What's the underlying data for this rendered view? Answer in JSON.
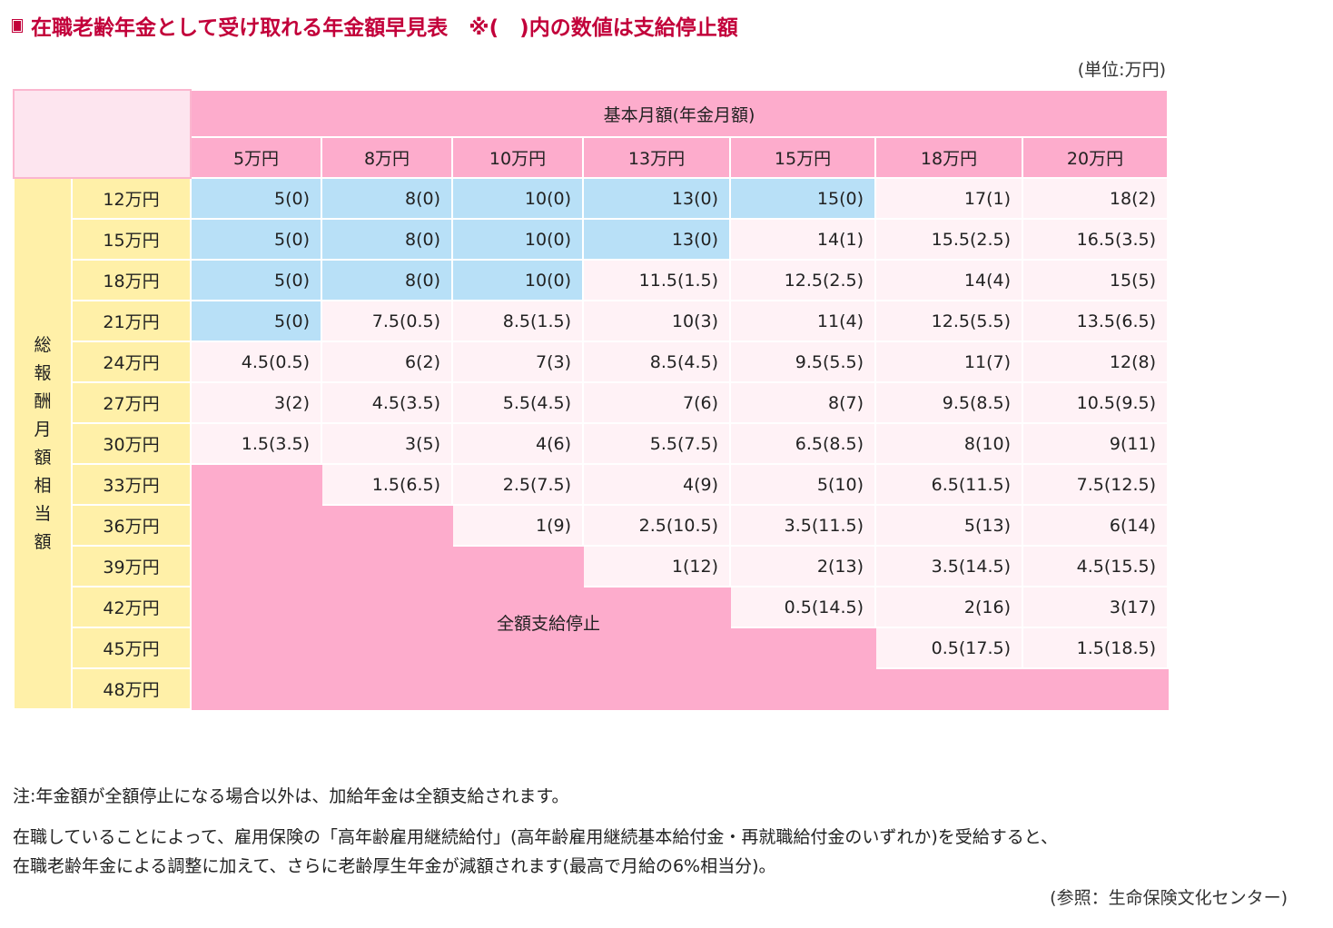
{
  "title": "在職老齢年金として受け取れる年金額早見表　※(　)内の数値は支給停止額",
  "unit": "(単位:万円)",
  "header": {
    "group_label": "基本月額(年金月額)",
    "columns": [
      "5万円",
      "8万円",
      "10万円",
      "13万円",
      "15万円",
      "18万円",
      "20万円"
    ]
  },
  "row_group_label": "総報酬月額相当額",
  "rows": [
    {
      "label": "12万円",
      "cells": [
        "5(0)",
        "8(0)",
        "10(0)",
        "13(0)",
        "15(0)",
        "17(1)",
        "18(2)"
      ]
    },
    {
      "label": "15万円",
      "cells": [
        "5(0)",
        "8(0)",
        "10(0)",
        "13(0)",
        "14(1)",
        "15.5(2.5)",
        "16.5(3.5)"
      ]
    },
    {
      "label": "18万円",
      "cells": [
        "5(0)",
        "8(0)",
        "10(0)",
        "11.5(1.5)",
        "12.5(2.5)",
        "14(4)",
        "15(5)"
      ]
    },
    {
      "label": "21万円",
      "cells": [
        "5(0)",
        "7.5(0.5)",
        "8.5(1.5)",
        "10(3)",
        "11(4)",
        "12.5(5.5)",
        "13.5(6.5)"
      ]
    },
    {
      "label": "24万円",
      "cells": [
        "4.5(0.5)",
        "6(2)",
        "7(3)",
        "8.5(4.5)",
        "9.5(5.5)",
        "11(7)",
        "12(8)"
      ]
    },
    {
      "label": "27万円",
      "cells": [
        "3(2)",
        "4.5(3.5)",
        "5.5(4.5)",
        "7(6)",
        "8(7)",
        "9.5(8.5)",
        "10.5(9.5)"
      ]
    },
    {
      "label": "30万円",
      "cells": [
        "1.5(3.5)",
        "3(5)",
        "4(6)",
        "5.5(7.5)",
        "6.5(8.5)",
        "8(10)",
        "9(11)"
      ]
    },
    {
      "label": "33万円",
      "cells": [
        null,
        "1.5(6.5)",
        "2.5(7.5)",
        "4(9)",
        "5(10)",
        "6.5(11.5)",
        "7.5(12.5)"
      ]
    },
    {
      "label": "36万円",
      "cells": [
        null,
        null,
        "1(9)",
        "2.5(10.5)",
        "3.5(11.5)",
        "5(13)",
        "6(14)"
      ]
    },
    {
      "label": "39万円",
      "cells": [
        null,
        null,
        null,
        "1(12)",
        "2(13)",
        "3.5(14.5)",
        "4.5(15.5)"
      ]
    },
    {
      "label": "42万円",
      "cells": [
        null,
        null,
        null,
        null,
        "0.5(14.5)",
        "2(16)",
        "3(17)"
      ]
    },
    {
      "label": "45万円",
      "cells": [
        null,
        null,
        null,
        null,
        null,
        "0.5(17.5)",
        "1.5(18.5)"
      ]
    },
    {
      "label": "48万円",
      "cells": [
        null,
        null,
        null,
        null,
        null,
        null,
        null
      ]
    }
  ],
  "full_stop_label": "全額支給停止",
  "note1": "注:年金額が全額停止になる場合以外は、加給年金は全額支給されます。",
  "note2_line1": "在職していることによって、雇用保険の「高年齢雇用継続給付」(高年齢雇用継続基本給付金・再就職給付金のいずれか)を受給すると、",
  "note2_line2": "在職老齢年金による調整に加えて、さらに老齢厚生年金が減額されます(最高で月給の6%相当分)。",
  "source": "(参照：生命保険文化センター)",
  "colors": {
    "title": "#c2003a",
    "header_pink": "#fdaccc",
    "full_payment_blue": "#b8e0f7",
    "partial_light_pink": "#fff2f6",
    "row_label_yellow": "#fff0a8"
  }
}
